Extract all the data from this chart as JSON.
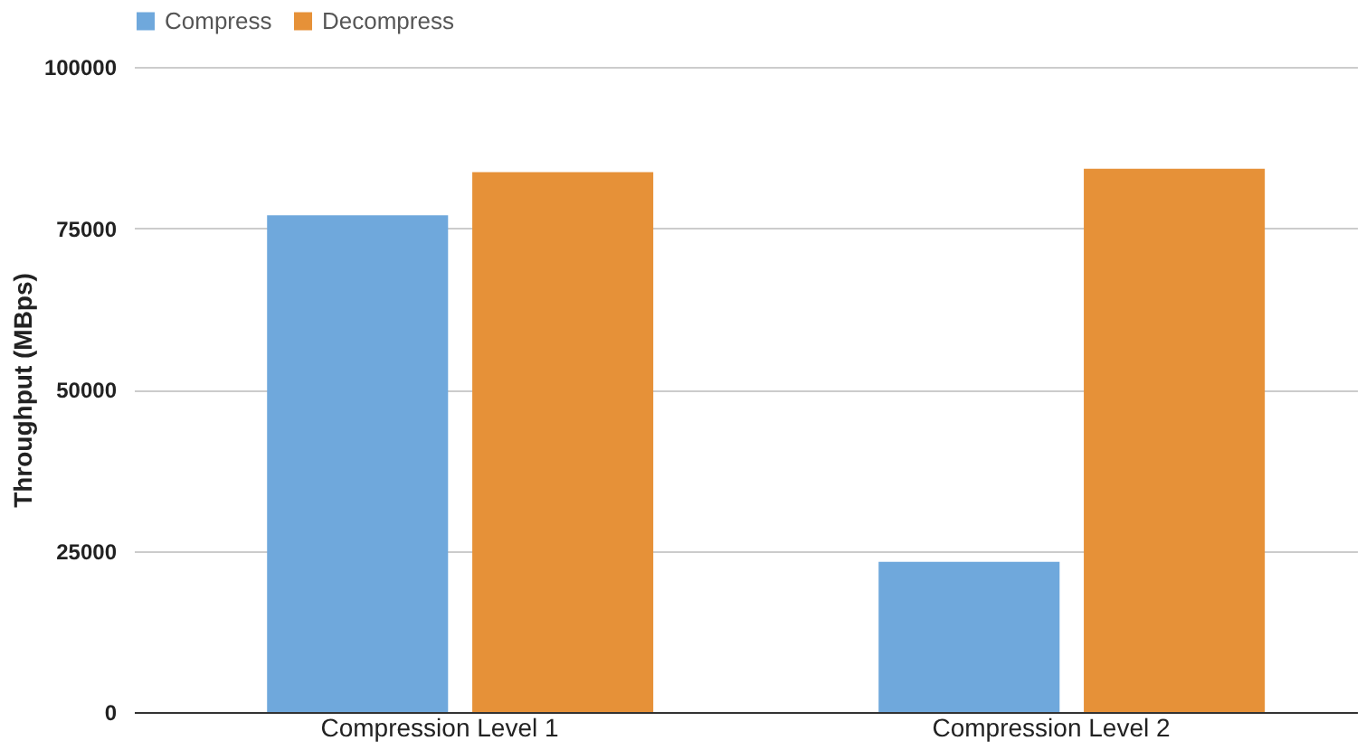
{
  "chart_data": {
    "type": "bar",
    "ylabel": "Throughput (MBps)",
    "categories": [
      "Compression Level 1",
      "Compression Level 2"
    ],
    "series": [
      {
        "name": "Compress",
        "color": "#6fa8dc",
        "values": [
          77000,
          23300
        ]
      },
      {
        "name": "Decompress",
        "color": "#e69138",
        "values": [
          83700,
          84200
        ]
      }
    ],
    "ylim": [
      0,
      100000
    ],
    "yticks": [
      0,
      25000,
      50000,
      75000,
      100000
    ],
    "grid": "y",
    "legend": "top"
  }
}
